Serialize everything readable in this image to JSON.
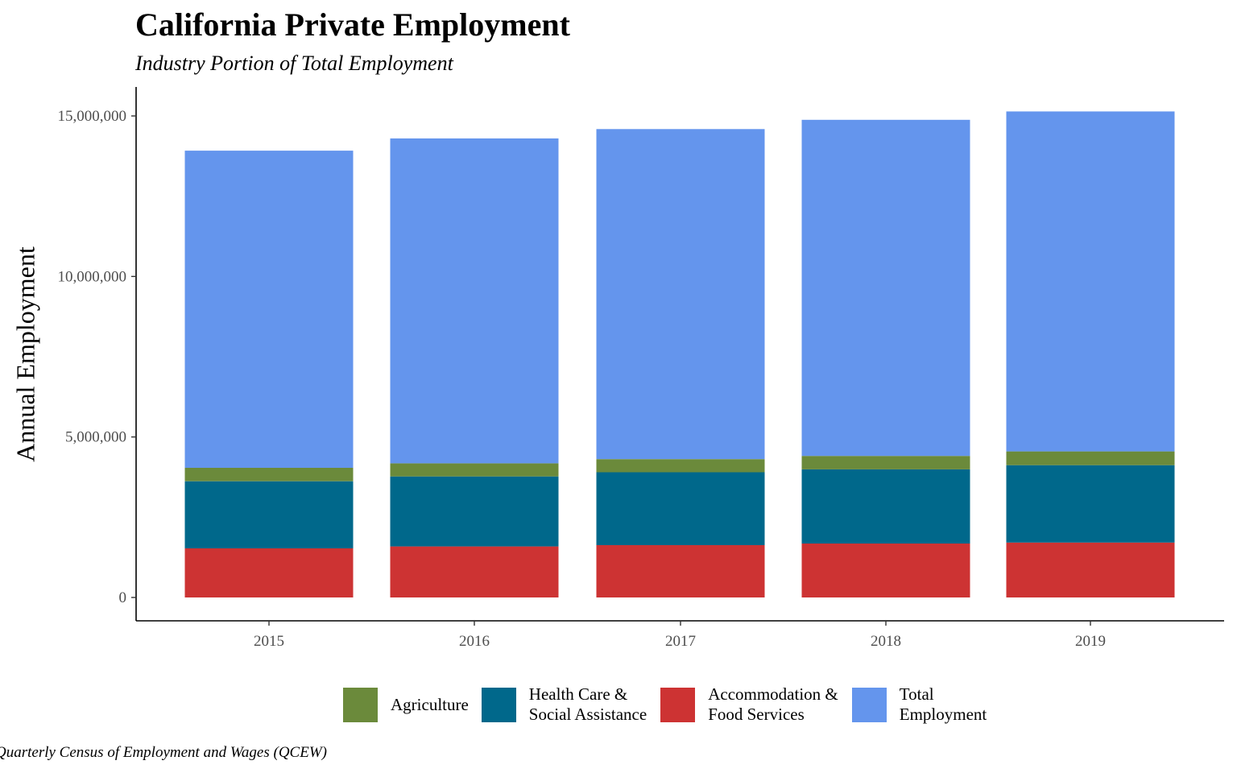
{
  "colors": {
    "agriculture": "#6b8a3b",
    "health": "#00688b",
    "accommodation": "#cd3333",
    "total": "#6495ed",
    "axis": "#000000",
    "tick_text": "#4d4d4d"
  },
  "chart_data": {
    "type": "bar",
    "stacked": true,
    "title": "California Private Employment",
    "subtitle": "Industry Portion of Total Employment",
    "xlabel": "",
    "ylabel": "Annual Employment",
    "ylim": [
      0,
      15000000
    ],
    "yticks": [
      0,
      5000000,
      10000000,
      15000000
    ],
    "ytick_labels": [
      "0",
      "5,000,000",
      "10,000,000",
      "15,000,000"
    ],
    "categories": [
      "2015",
      "2016",
      "2017",
      "2018",
      "2019"
    ],
    "series": [
      {
        "name": "Accommodation & Food Services",
        "color_key": "accommodation",
        "values": [
          1530000,
          1590000,
          1630000,
          1680000,
          1710000
        ]
      },
      {
        "name": "Health Care & Social Assistance",
        "color_key": "health",
        "values": [
          2090000,
          2180000,
          2270000,
          2310000,
          2410000
        ]
      },
      {
        "name": "Agriculture",
        "color_key": "agriculture",
        "values": [
          420000,
          410000,
          410000,
          420000,
          430000
        ]
      },
      {
        "name": "Total Employment",
        "color_key": "total",
        "values": [
          9880000,
          10120000,
          10280000,
          10470000,
          10590000
        ]
      }
    ],
    "legend_position": "bottom",
    "grid": false,
    "caption": "Quarterly Census of Employment and Wages (QCEW)"
  },
  "legend": [
    {
      "label": "Agriculture",
      "color_key": "agriculture"
    },
    {
      "label": "Health Care &\nSocial Assistance",
      "color_key": "health"
    },
    {
      "label": "Accommodation &\nFood Services",
      "color_key": "accommodation"
    },
    {
      "label": "Total\nEmployment",
      "color_key": "total"
    }
  ]
}
